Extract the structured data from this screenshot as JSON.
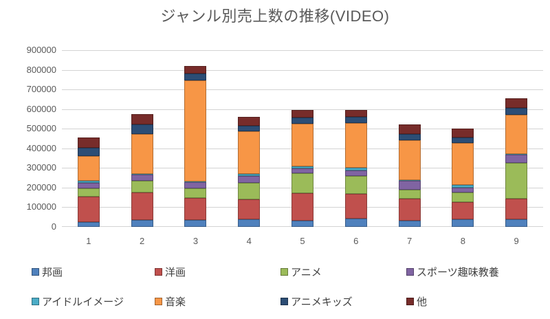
{
  "window": {
    "background": "#ffffff"
  },
  "chart_data": {
    "type": "bar",
    "stacked": true,
    "title": "ジャンル別売上数の推移(VIDEO)",
    "xlabel": "",
    "ylabel": "",
    "categories": [
      "1",
      "2",
      "3",
      "4",
      "5",
      "6",
      "7",
      "8",
      "9"
    ],
    "series": [
      {
        "name": "邦画",
        "color": "#4F81BD",
        "values": [
          25000,
          35000,
          35000,
          39000,
          33000,
          43000,
          32000,
          37000,
          37000
        ]
      },
      {
        "name": "洋画",
        "color": "#C0504D",
        "values": [
          130000,
          140000,
          112000,
          102000,
          140000,
          124000,
          111000,
          88000,
          107000
        ]
      },
      {
        "name": "アニメ",
        "color": "#9BBB59",
        "values": [
          42000,
          60000,
          49000,
          82000,
          100000,
          93000,
          45000,
          51000,
          181000
        ]
      },
      {
        "name": "スポーツ趣味教養",
        "color": "#8064A2",
        "values": [
          29000,
          30000,
          31000,
          35000,
          24000,
          29000,
          46000,
          23000,
          42000
        ]
      },
      {
        "name": "アイドルイメージ",
        "color": "#4BACC6",
        "values": [
          10000,
          4000,
          5000,
          12000,
          12000,
          12000,
          5000,
          14000,
          5000
        ]
      },
      {
        "name": "音楽",
        "color": "#F79646",
        "values": [
          125000,
          205000,
          515000,
          217000,
          217000,
          227000,
          204000,
          213000,
          198000
        ]
      },
      {
        "name": "アニメキッズ",
        "color": "#2C4D75",
        "values": [
          41000,
          47000,
          35000,
          27000,
          30000,
          32000,
          30000,
          28000,
          35000
        ]
      },
      {
        "name": "他",
        "color": "#772C2A",
        "values": [
          52000,
          53000,
          39000,
          47000,
          40000,
          37000,
          50000,
          48000,
          50000
        ]
      }
    ],
    "y_axis": {
      "min": 0,
      "max": 900000,
      "step": 100000,
      "tick_labels": [
        "900000",
        "800000",
        "700000",
        "600000",
        "500000",
        "400000",
        "300000",
        "200000",
        "100000",
        "0"
      ]
    },
    "grid": true,
    "legend_position": "bottom"
  }
}
